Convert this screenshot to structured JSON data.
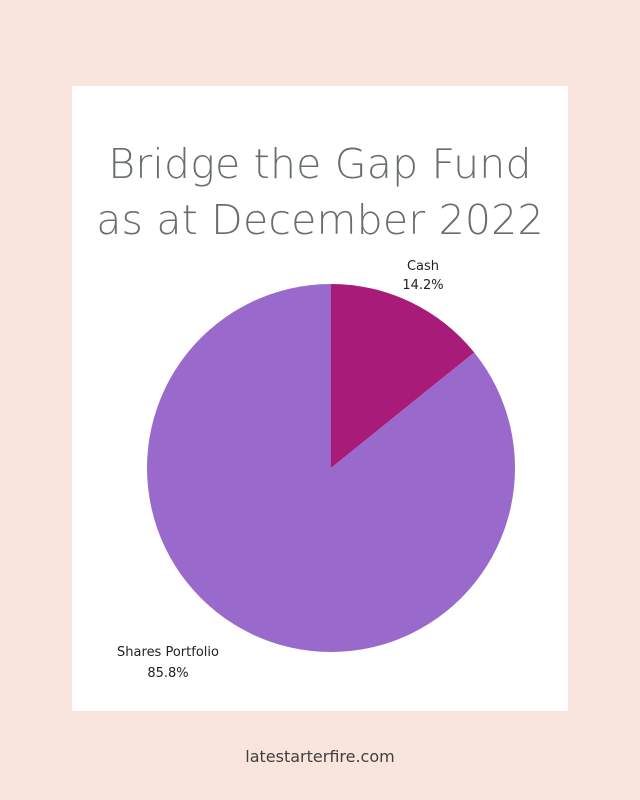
{
  "page": {
    "background": "#f9e4de",
    "card_background": "#ffffff",
    "footer": "latestarterfire.com"
  },
  "chart_data": {
    "type": "pie",
    "title_lines": [
      "Bridge the Gap Fund",
      "as at December 2022"
    ],
    "slices": [
      {
        "label": "Cash",
        "value": 14.2,
        "value_text": "14.2%",
        "color": "#a91b79"
      },
      {
        "label": "Shares Portfolio",
        "value": 85.8,
        "value_text": "85.8%",
        "color": "#9a69cc"
      }
    ],
    "start_angle": "12 o'clock",
    "direction": "clockwise",
    "legend": "none"
  }
}
